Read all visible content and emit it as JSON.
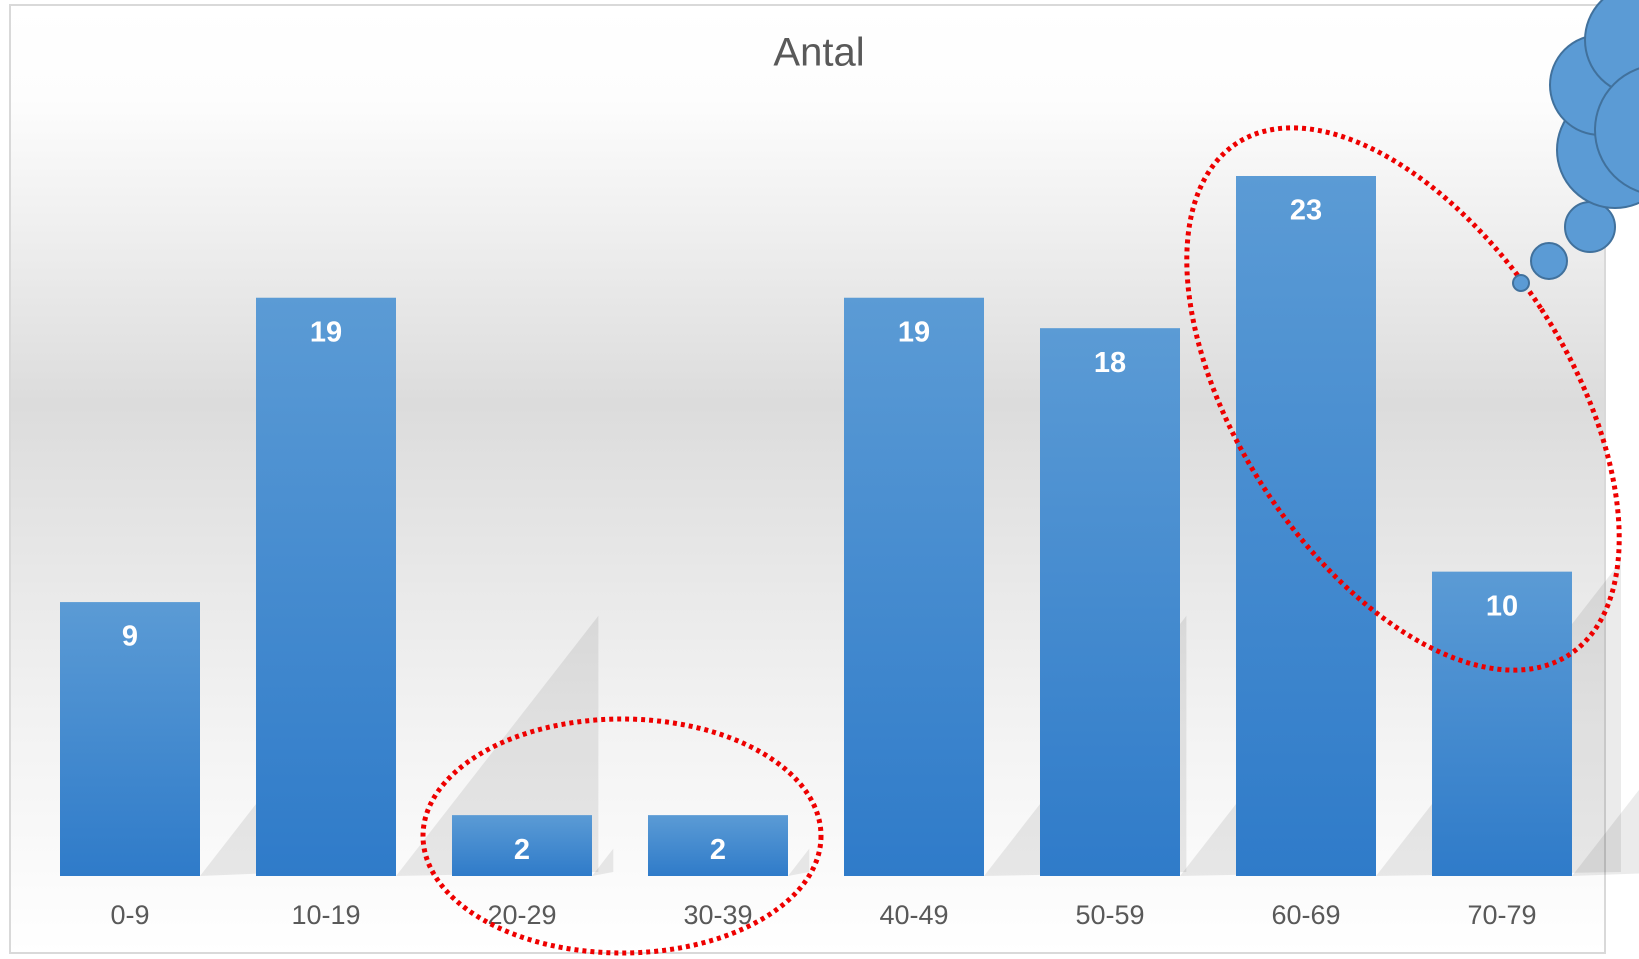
{
  "chart_data": {
    "type": "bar",
    "title": "Antal",
    "categories": [
      "0-9",
      "10-19",
      "20-29",
      "30-39",
      "40-49",
      "50-59",
      "60-69",
      "70-79"
    ],
    "values": [
      9,
      19,
      2,
      2,
      19,
      18,
      23,
      10
    ],
    "color": "#4a8fd6"
  }
}
